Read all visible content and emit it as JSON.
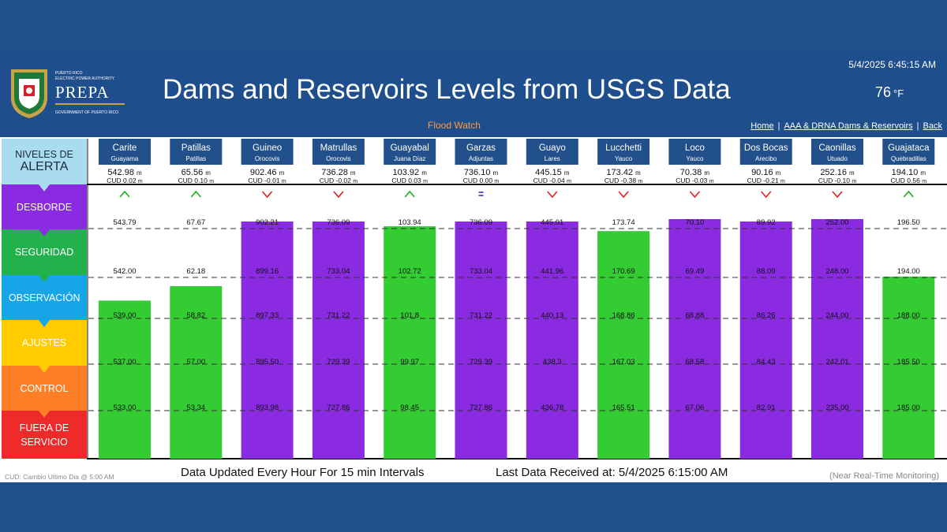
{
  "header": {
    "logo_line1": "PUERTO RICO",
    "logo_line2": "ELECTRIC POWER AUTHORITY",
    "logo_name": "PREPA",
    "logo_line3": "GOVERNMENT OF PUERTO RICO",
    "title": "Dams and Reservoirs Levels from USGS Data",
    "datetime": "5/4/2025 6:45:15 AM",
    "temperature": "76",
    "temperature_unit": "°F",
    "status": "Flood Watch",
    "links": [
      "Home",
      "AAA & DRNA Dams & Reservoirs",
      "Back"
    ]
  },
  "legend": {
    "header_line1": "NIVELES DE",
    "header_line2": "ALERTA",
    "levels": [
      {
        "label": "DESBORDE",
        "color": "#8a2be2"
      },
      {
        "label": "SEGURIDAD",
        "color": "#22b14c"
      },
      {
        "label": "OBSERVACIÓN",
        "color": "#16a6e8"
      },
      {
        "label": "AJUSTES",
        "color": "#ffcc00"
      },
      {
        "label": "CONTROL",
        "color": "#ff7f27"
      },
      {
        "label": "FUERA DE SERVICIO",
        "color": "#ee2a2a"
      }
    ]
  },
  "colors": {
    "bar_green": "#33cc33",
    "bar_purple": "#8a2be2",
    "name_box": "#22508a",
    "trend_up": "#22aa22",
    "trend_down": "#dd2222",
    "trend_flat": "#2222cc"
  },
  "chart_data": {
    "type": "bar",
    "reservoirs": [
      {
        "name": "Carite",
        "town": "Guayama",
        "level": "542.98",
        "unit": "m",
        "cud": "CUD 0.02",
        "cud_unit": "m",
        "trend": "up",
        "color": "green",
        "fill": 0.66,
        "thresholds": [
          "543.79",
          "542.00",
          "539.00",
          "537.00",
          "533.00"
        ]
      },
      {
        "name": "Patillas",
        "town": "Patillas",
        "level": "65.56",
        "unit": "m",
        "cud": "CUD 0.10",
        "cud_unit": "m",
        "trend": "up",
        "color": "green",
        "fill": 0.72,
        "thresholds": [
          "67.67",
          "62.18",
          "58.82",
          "57.00",
          "53.34"
        ]
      },
      {
        "name": "Guineo",
        "town": "Orocovis",
        "level": "902.46",
        "unit": "m",
        "cud": "CUD -0.01",
        "cud_unit": "m",
        "trend": "down",
        "color": "purple",
        "fill": 0.99,
        "thresholds": [
          "902.21",
          "899.16",
          "897.33",
          "895.50",
          "893.98"
        ]
      },
      {
        "name": "Matrullas",
        "town": "Orocovis",
        "level": "736.28",
        "unit": "m",
        "cud": "CUD -0.02",
        "cud_unit": "m",
        "trend": "down",
        "color": "purple",
        "fill": 0.99,
        "thresholds": [
          "736.09",
          "733.04",
          "731.22",
          "729.39",
          "727.86"
        ]
      },
      {
        "name": "Guayabal",
        "town": "Juana Díaz",
        "level": "103.92",
        "unit": "m",
        "cud": "CUD 0.03",
        "cud_unit": "m",
        "trend": "up",
        "color": "green",
        "fill": 0.97,
        "thresholds": [
          "103.94",
          "102.72",
          "101.8",
          "99.97",
          "98.45"
        ]
      },
      {
        "name": "Garzas",
        "town": "Adjuntas",
        "level": "736.10",
        "unit": "m",
        "cud": "CUD 0.00",
        "cud_unit": "m",
        "trend": "flat",
        "color": "purple",
        "fill": 0.99,
        "thresholds": [
          "736.09",
          "733.04",
          "731.22",
          "729.39",
          "727.86"
        ]
      },
      {
        "name": "Guayo",
        "town": "Lares",
        "level": "445.15",
        "unit": "m",
        "cud": "CUD -0.04",
        "cud_unit": "m",
        "trend": "down",
        "color": "purple",
        "fill": 0.99,
        "thresholds": [
          "445.01",
          "441.96",
          "440.13",
          "438.3",
          "436.78"
        ]
      },
      {
        "name": "Lucchetti",
        "town": "Yauco",
        "level": "173.42",
        "unit": "m",
        "cud": "CUD -0.38",
        "cud_unit": "m",
        "trend": "down",
        "color": "green",
        "fill": 0.95,
        "thresholds": [
          "173.74",
          "170.69",
          "168.86",
          "167.03",
          "165.51"
        ]
      },
      {
        "name": "Loco",
        "town": "Yauco",
        "level": "70.38",
        "unit": "m",
        "cud": "CUD -0.03",
        "cud_unit": "m",
        "trend": "down",
        "color": "purple",
        "fill": 1.0,
        "thresholds": [
          "70.10",
          "69.49",
          "68.88",
          "68.58",
          "67.06"
        ]
      },
      {
        "name": "Dos Bocas",
        "town": "Arecibo",
        "level": "90.16",
        "unit": "m",
        "cud": "CUD -0.21",
        "cud_unit": "m",
        "trend": "down",
        "color": "purple",
        "fill": 0.99,
        "thresholds": [
          "89.92",
          "88.09",
          "86.26",
          "84.43",
          "82.91"
        ]
      },
      {
        "name": "Caonillas",
        "town": "Utuado",
        "level": "252.16",
        "unit": "m",
        "cud": "CUD -0.10",
        "cud_unit": "m",
        "trend": "down",
        "color": "purple",
        "fill": 1.0,
        "thresholds": [
          "252.00",
          "248.00",
          "244.00",
          "242.01",
          "235.00"
        ]
      },
      {
        "name": "Guajataca",
        "town": "Quebradillas",
        "level": "194.10",
        "unit": "m",
        "cud": "CUD 0.56",
        "cud_unit": "m",
        "trend": "up",
        "color": "green",
        "fill": 0.76,
        "thresholds": [
          "196.50",
          "194.00",
          "188.00",
          "185.50",
          "185.00"
        ]
      }
    ]
  },
  "footer": {
    "left": "CUD: Cambio Ultimo Dia @ 5:00 AM",
    "update_note": "Data Updated Every Hour For 15 min Intervals",
    "last_received": "Last Data Received at:  5/4/2025 6:15:00 AM",
    "right": "(Near Real-Time Monitoring)"
  }
}
